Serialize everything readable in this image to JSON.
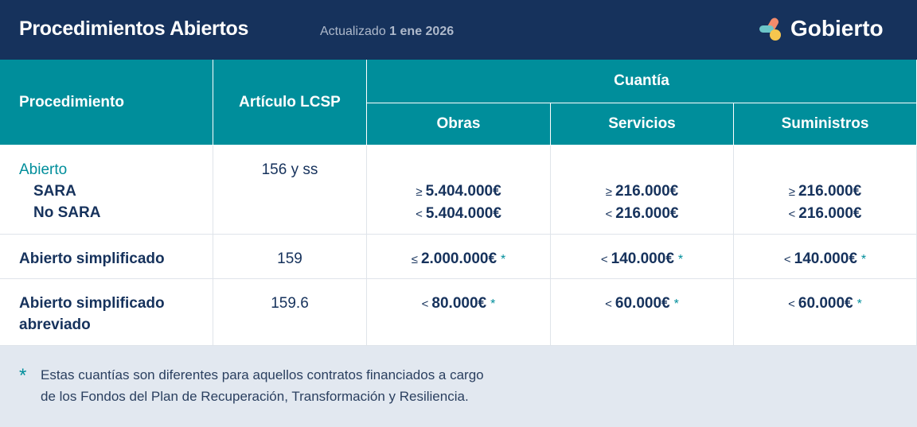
{
  "header": {
    "title": "Procedimientos Abiertos",
    "updated_label": "Actualizado",
    "updated_date": "1 ene 2026",
    "brand": "Gobierto"
  },
  "table": {
    "columns": [
      "Procedimiento",
      "Artículo LCSP"
    ],
    "group": "Cuantía",
    "subcolumns": [
      "Obras",
      "Servicios",
      "Suministros"
    ],
    "rows": [
      {
        "procedure": "Abierto",
        "subitems": [
          "SARA",
          "No SARA"
        ],
        "article": "156 y ss",
        "amounts": [
          [
            {
              "op": "≥",
              "amount": "5.404.000€"
            },
            {
              "op": "<",
              "amount": "5.404.000€"
            }
          ],
          [
            {
              "op": "≥",
              "amount": "216.000€"
            },
            {
              "op": "<",
              "amount": "216.000€"
            }
          ],
          [
            {
              "op": "≥",
              "amount": "216.000€"
            },
            {
              "op": "<",
              "amount": "216.000€"
            }
          ]
        ]
      },
      {
        "procedure": "Abierto simplificado",
        "article": "159",
        "amounts": [
          [
            {
              "op": "≤",
              "amount": "2.000.000€",
              "mark": "*"
            }
          ],
          [
            {
              "op": "<",
              "amount": "140.000€",
              "mark": "*"
            }
          ],
          [
            {
              "op": "<",
              "amount": "140.000€",
              "mark": "*"
            }
          ]
        ]
      },
      {
        "procedure": "Abierto simplificado abreviado",
        "article": "159.6",
        "amounts": [
          [
            {
              "op": "<",
              "amount": "80.000€",
              "mark": "*"
            }
          ],
          [
            {
              "op": "<",
              "amount": "60.000€",
              "mark": "*"
            }
          ],
          [
            {
              "op": "<",
              "amount": "60.000€",
              "mark": "*"
            }
          ]
        ]
      }
    ]
  },
  "footer": {
    "mark": "*",
    "lines": [
      "Estas cuantías son diferentes para aquellos contratos financiados a cargo",
      "de los Fondos del Plan de Recuperación, Transformación y Resiliencia."
    ]
  }
}
